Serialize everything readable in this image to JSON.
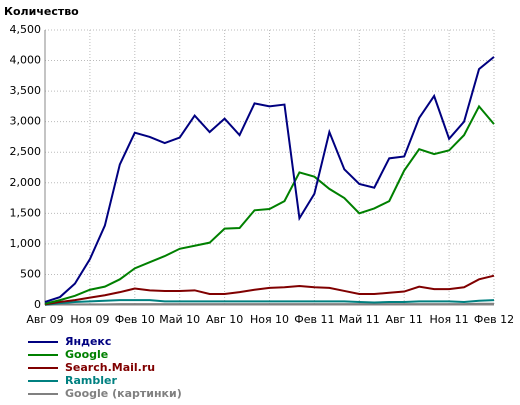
{
  "chart_data": {
    "type": "line",
    "title": "Количество",
    "categories": [
      "Авг 09",
      null,
      null,
      "Ноя 09",
      null,
      null,
      "Фев 10",
      null,
      null,
      "Май 10",
      null,
      null,
      "Авг 10",
      null,
      null,
      "Ноя 10",
      null,
      null,
      "Фев 11",
      null,
      null,
      "Май 11",
      null,
      null,
      "Авг 11",
      null,
      null,
      "Ноя 11",
      null,
      null,
      "Фев 12"
    ],
    "series": [
      {
        "name": "Яндекс",
        "color": "#000080",
        "values": [
          50,
          130,
          350,
          750,
          1300,
          2300,
          2820,
          2750,
          2650,
          2740,
          3100,
          2830,
          3050,
          2780,
          3300,
          3250,
          3280,
          1420,
          1820,
          2830,
          2220,
          1980,
          1920,
          2400,
          2430,
          3060,
          3420,
          2720,
          3000,
          3860,
          4060
        ]
      },
      {
        "name": "Google",
        "color": "#008000",
        "values": [
          20,
          80,
          150,
          250,
          300,
          420,
          600,
          700,
          800,
          920,
          970,
          1020,
          1250,
          1260,
          1550,
          1570,
          1700,
          2170,
          2100,
          1900,
          1750,
          1500,
          1580,
          1700,
          2200,
          2550,
          2470,
          2530,
          2780,
          3250,
          2960
        ]
      },
      {
        "name": "Search.Mail.ru",
        "color": "#800000",
        "values": [
          10,
          50,
          80,
          120,
          160,
          210,
          270,
          240,
          230,
          230,
          240,
          180,
          180,
          210,
          250,
          280,
          290,
          310,
          290,
          280,
          230,
          180,
          180,
          200,
          220,
          300,
          260,
          260,
          290,
          420,
          480
        ]
      },
      {
        "name": "Rambler",
        "color": "#008080",
        "values": [
          5,
          30,
          50,
          60,
          70,
          80,
          80,
          80,
          60,
          60,
          60,
          60,
          60,
          60,
          60,
          60,
          60,
          60,
          60,
          60,
          60,
          50,
          40,
          50,
          50,
          60,
          60,
          60,
          50,
          70,
          80
        ]
      },
      {
        "name": "Google (картинки)",
        "color": "#808080",
        "values": [
          5,
          10,
          10,
          10,
          10,
          15,
          15,
          15,
          15,
          15,
          15,
          15,
          15,
          15,
          15,
          15,
          15,
          15,
          15,
          15,
          15,
          15,
          15,
          15,
          15,
          15,
          15,
          15,
          15,
          20,
          20
        ]
      }
    ],
    "ylim": [
      0,
      4500
    ],
    "yticks": [
      0,
      500,
      {
        "value": 1000,
        "label": "1,000"
      },
      {
        "value": 1500,
        "label": "1,500"
      },
      {
        "value": 2000,
        "label": "2,000"
      },
      {
        "value": 2500,
        "label": "2,500"
      },
      {
        "value": 3000,
        "label": "3,000"
      },
      {
        "value": 3500,
        "label": "3,500"
      },
      {
        "value": 4000,
        "label": "4,000"
      },
      {
        "value": 4500,
        "label": "4,500"
      }
    ],
    "grid": true
  }
}
